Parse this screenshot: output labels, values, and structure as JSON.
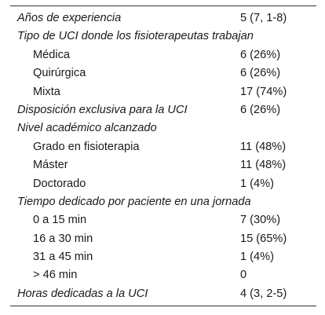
{
  "rows": [
    {
      "label": "Años de experiencia",
      "value": "5 (7, 1-8)",
      "style": "header"
    },
    {
      "label": "Tipo de UCI donde los fisioterapeutas trabajan",
      "value": "",
      "style": "header"
    },
    {
      "label": "Médica",
      "value": "6 (26%)",
      "style": "item"
    },
    {
      "label": "Quirúrgica",
      "value": "6 (26%)",
      "style": "item"
    },
    {
      "label": "Mixta",
      "value": "17 (74%)",
      "style": "item"
    },
    {
      "label": "Disposición exclusiva para la UCI",
      "value": "6 (26%)",
      "style": "header"
    },
    {
      "label": "Nivel académico alcanzado",
      "value": "",
      "style": "header"
    },
    {
      "label": "Grado en fisioterapia",
      "value": "11 (48%)",
      "style": "item"
    },
    {
      "label": "Máster",
      "value": "11 (48%)",
      "style": "item"
    },
    {
      "label": "Doctorado",
      "value": "1 (4%)",
      "style": "item"
    },
    {
      "label": "Tiempo dedicado por paciente en una jornada",
      "value": "",
      "style": "header"
    },
    {
      "label": "0 a 15 min",
      "value": "7 (30%)",
      "style": "item"
    },
    {
      "label": "16 a 30 min",
      "value": "15 (65%)",
      "style": "item"
    },
    {
      "label": "31 a 45 min",
      "value": "1 (4%)",
      "style": "item"
    },
    {
      "label": "> 46 min",
      "value": "0",
      "style": "item"
    },
    {
      "label": "Horas dedicadas a la UCI",
      "value": "4 (3, 2-5)",
      "style": "header"
    }
  ]
}
